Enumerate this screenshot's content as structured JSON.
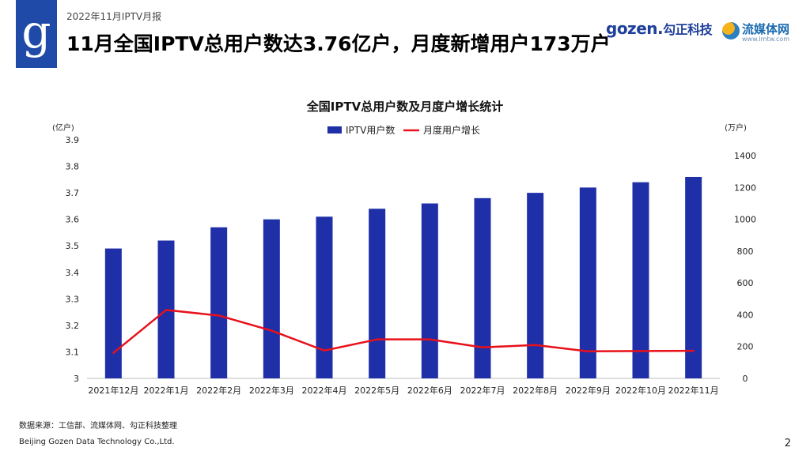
{
  "header": {
    "report_tag": "2022年11月IPTV月报",
    "title": "11月全国IPTV总用户数达3.76亿户，月度新增用户173万户",
    "logo_letter": "g",
    "brand_gozen": "gozen.",
    "brand_gozen_cn": "勾正科技",
    "brand_media_name": "流媒体网",
    "brand_media_url": "www.lmtw.com"
  },
  "footer": {
    "source": "数据来源：工信部、流媒体网、勾正科技整理",
    "company": "Beijing Gozen Data Technology Co.,Ltd.",
    "page": "2"
  },
  "colors": {
    "bar": "#1f2fa8",
    "line": "#e8101a",
    "logo": "#1f4aa8"
  },
  "chart_data": {
    "type": "bar",
    "title": "全国IPTV总用户数及月度户增长统计",
    "categories": [
      "2021年12月",
      "2022年1月",
      "2022年2月",
      "2022年3月",
      "2022年4月",
      "2022年5月",
      "2022年6月",
      "2022年7月",
      "2022年8月",
      "2022年9月",
      "2022年10月",
      "2022年11月"
    ],
    "series": [
      {
        "name": "IPTV用户数",
        "type": "bar",
        "axis": "left",
        "values": [
          3.49,
          3.52,
          3.57,
          3.6,
          3.61,
          3.64,
          3.66,
          3.68,
          3.7,
          3.72,
          3.74,
          3.76
        ]
      },
      {
        "name": "月度用户增长",
        "type": "line",
        "axis": "right",
        "values": [
          160,
          430,
          395,
          300,
          175,
          245,
          245,
          195,
          210,
          170,
          172,
          173
        ]
      }
    ],
    "left_axis": {
      "unit": "(亿户)",
      "min": 3.0,
      "max": 3.9,
      "ticks": [
        "3",
        "3.1",
        "3.2",
        "3.3",
        "3.4",
        "3.5",
        "3.6",
        "3.7",
        "3.8",
        "3.9"
      ]
    },
    "right_axis": {
      "unit": "(万户)",
      "min": 0,
      "max": 1500,
      "ticks": [
        "0",
        "200",
        "400",
        "600",
        "800",
        "1000",
        "1200",
        "1400"
      ]
    },
    "legend_position": "top-center",
    "grid": false
  }
}
